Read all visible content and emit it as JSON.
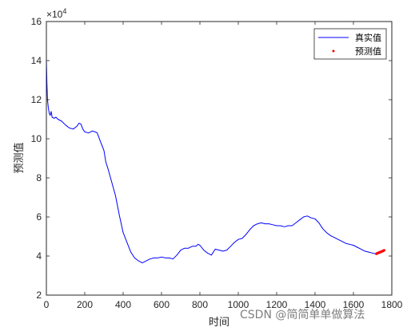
{
  "chart_data": {
    "type": "line",
    "xlabel": "时间",
    "ylabel": "预测值",
    "y_exponent_label": "×10",
    "y_exponent_power": "4",
    "xlim": [
      0,
      1800
    ],
    "ylim": [
      20000,
      160000
    ],
    "x_ticks": [
      0,
      200,
      400,
      600,
      800,
      1000,
      1200,
      1400,
      1600,
      1800
    ],
    "x_tick_labels": [
      "0",
      "200",
      "400",
      "600",
      "800",
      "1000",
      "1200",
      "1400",
      "1600",
      "1800"
    ],
    "y_ticks": [
      20000,
      40000,
      60000,
      80000,
      100000,
      120000,
      140000,
      160000
    ],
    "y_tick_labels": [
      "2",
      "4",
      "6",
      "8",
      "10",
      "12",
      "14",
      "16"
    ],
    "grid": false,
    "legend_position": "top-right",
    "series": [
      {
        "name": "真实值",
        "style": "line",
        "color": "#0000ff",
        "points": [
          [
            0,
            141000
          ],
          [
            3,
            128000
          ],
          [
            6,
            120000
          ],
          [
            10,
            116000
          ],
          [
            15,
            113000
          ],
          [
            20,
            112000
          ],
          [
            25,
            114000
          ],
          [
            30,
            111000
          ],
          [
            40,
            110500
          ],
          [
            50,
            111000
          ],
          [
            60,
            110000
          ],
          [
            80,
            109000
          ],
          [
            100,
            107000
          ],
          [
            120,
            105500
          ],
          [
            140,
            105000
          ],
          [
            160,
            106500
          ],
          [
            170,
            108000
          ],
          [
            180,
            107500
          ],
          [
            190,
            105000
          ],
          [
            200,
            103500
          ],
          [
            220,
            103000
          ],
          [
            240,
            104000
          ],
          [
            255,
            103500
          ],
          [
            265,
            103000
          ],
          [
            280,
            99000
          ],
          [
            300,
            94000
          ],
          [
            310,
            88000
          ],
          [
            320,
            85000
          ],
          [
            340,
            78000
          ],
          [
            360,
            71000
          ],
          [
            380,
            61000
          ],
          [
            400,
            52000
          ],
          [
            420,
            47000
          ],
          [
            440,
            42000
          ],
          [
            460,
            39000
          ],
          [
            480,
            37500
          ],
          [
            500,
            36500
          ],
          [
            520,
            37500
          ],
          [
            540,
            38500
          ],
          [
            560,
            39000
          ],
          [
            580,
            39000
          ],
          [
            600,
            39500
          ],
          [
            620,
            39000
          ],
          [
            640,
            39000
          ],
          [
            660,
            38500
          ],
          [
            680,
            40500
          ],
          [
            700,
            43000
          ],
          [
            720,
            44000
          ],
          [
            740,
            44000
          ],
          [
            760,
            45000
          ],
          [
            780,
            45000
          ],
          [
            790,
            46000
          ],
          [
            800,
            45500
          ],
          [
            820,
            43000
          ],
          [
            840,
            41500
          ],
          [
            860,
            40500
          ],
          [
            880,
            43500
          ],
          [
            900,
            43000
          ],
          [
            920,
            42500
          ],
          [
            940,
            43000
          ],
          [
            960,
            45000
          ],
          [
            980,
            47000
          ],
          [
            1000,
            48500
          ],
          [
            1020,
            49000
          ],
          [
            1040,
            51000
          ],
          [
            1060,
            53500
          ],
          [
            1080,
            55500
          ],
          [
            1100,
            56500
          ],
          [
            1120,
            57000
          ],
          [
            1140,
            56500
          ],
          [
            1160,
            56500
          ],
          [
            1180,
            56000
          ],
          [
            1200,
            55500
          ],
          [
            1220,
            55500
          ],
          [
            1240,
            55000
          ],
          [
            1260,
            55500
          ],
          [
            1280,
            55500
          ],
          [
            1300,
            57000
          ],
          [
            1320,
            58500
          ],
          [
            1340,
            60000
          ],
          [
            1360,
            60500
          ],
          [
            1380,
            59500
          ],
          [
            1400,
            59000
          ],
          [
            1420,
            57000
          ],
          [
            1440,
            54000
          ],
          [
            1460,
            52000
          ],
          [
            1480,
            50500
          ],
          [
            1500,
            49500
          ],
          [
            1520,
            48500
          ],
          [
            1540,
            47500
          ],
          [
            1560,
            46500
          ],
          [
            1580,
            46000
          ],
          [
            1600,
            45500
          ],
          [
            1620,
            44500
          ],
          [
            1640,
            43500
          ],
          [
            1660,
            42500
          ],
          [
            1680,
            42000
          ],
          [
            1700,
            41500
          ],
          [
            1720,
            41000
          ],
          [
            1740,
            42000
          ],
          [
            1760,
            43000
          ]
        ]
      },
      {
        "name": "预测值",
        "style": "markers",
        "color": "#ff0000",
        "points": [
          [
            1720,
            41200
          ],
          [
            1724,
            41400
          ],
          [
            1728,
            41500
          ],
          [
            1732,
            41700
          ],
          [
            1736,
            41900
          ],
          [
            1740,
            42000
          ],
          [
            1744,
            42200
          ],
          [
            1748,
            42400
          ],
          [
            1752,
            42500
          ],
          [
            1756,
            42700
          ],
          [
            1760,
            42900
          ]
        ]
      }
    ]
  },
  "watermark": "CSDN @简简单单做算法"
}
